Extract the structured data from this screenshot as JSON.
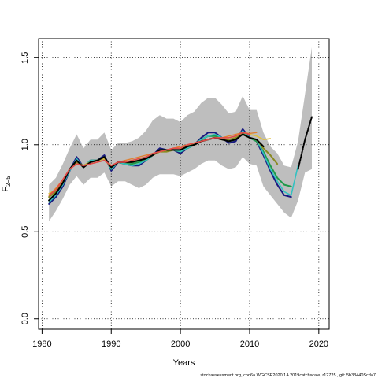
{
  "chart_data": {
    "type": "line",
    "xlabel": "Years",
    "ylabel": "F",
    "ylabel_sub": "2−5",
    "xlim": [
      1979.5,
      2021.5
    ],
    "ylim": [
      -0.06,
      1.61
    ],
    "x_ticks": [
      1980,
      1990,
      2000,
      2010,
      2020
    ],
    "y_ticks": [
      0.0,
      0.5,
      1.0,
      1.5
    ],
    "y_tick_labels": [
      "0.0",
      "0.5",
      "1.0",
      "1.5"
    ],
    "grid": true,
    "grid_style": "dotted",
    "band": {
      "color": "#bebebe",
      "x": [
        1981,
        1982,
        1983,
        1984,
        1985,
        1986,
        1987,
        1988,
        1989,
        1990,
        1991,
        1992,
        1993,
        1994,
        1995,
        1996,
        1997,
        1998,
        1999,
        2000,
        2001,
        2002,
        2003,
        2004,
        2005,
        2006,
        2007,
        2008,
        2009,
        2010,
        2011,
        2012,
        2013,
        2014,
        2015,
        2016,
        2017,
        2018,
        2019
      ],
      "upper": [
        0.77,
        0.81,
        0.89,
        0.98,
        1.06,
        0.98,
        1.03,
        1.03,
        1.07,
        0.97,
        1.01,
        1.01,
        1.02,
        1.04,
        1.08,
        1.14,
        1.17,
        1.15,
        1.15,
        1.13,
        1.17,
        1.19,
        1.24,
        1.27,
        1.27,
        1.23,
        1.18,
        1.19,
        1.28,
        1.2,
        1.2,
        1.07,
        0.99,
        0.95,
        0.88,
        0.87,
        1.02,
        1.29,
        1.56
      ],
      "lower": [
        0.56,
        0.62,
        0.69,
        0.77,
        0.82,
        0.77,
        0.81,
        0.81,
        0.84,
        0.76,
        0.79,
        0.79,
        0.77,
        0.75,
        0.77,
        0.81,
        0.83,
        0.83,
        0.83,
        0.82,
        0.84,
        0.86,
        0.89,
        0.91,
        0.91,
        0.88,
        0.86,
        0.87,
        0.93,
        0.89,
        0.88,
        0.76,
        0.71,
        0.66,
        0.61,
        0.58,
        0.68,
        0.84,
        0.86
      ]
    },
    "series": [
      {
        "color": "#1a1a80",
        "width": 2,
        "x": [
          1981,
          1982,
          1983,
          1984,
          1985,
          1986,
          1987,
          1988,
          1989,
          1990,
          1991,
          1992,
          1993,
          1994,
          1995,
          1996,
          1997,
          1998,
          1999,
          2000,
          2001,
          2002,
          2003,
          2004,
          2005,
          2006,
          2007,
          2008,
          2009,
          2010,
          2011,
          2012,
          2013,
          2014,
          2015,
          2016
        ],
        "values": [
          0.66,
          0.7,
          0.76,
          0.85,
          0.93,
          0.87,
          0.91,
          0.91,
          0.94,
          0.85,
          0.9,
          0.89,
          0.88,
          0.88,
          0.91,
          0.94,
          0.98,
          0.97,
          0.97,
          0.95,
          0.98,
          1.0,
          1.04,
          1.07,
          1.07,
          1.04,
          1.01,
          1.02,
          1.09,
          1.04,
          1.02,
          0.94,
          0.85,
          0.77,
          0.71,
          0.7
        ]
      },
      {
        "color": "#1f9a4a",
        "width": 2,
        "x": [
          1981,
          1982,
          1983,
          1984,
          1985,
          1986,
          1987,
          1988,
          1989,
          1990,
          1991,
          1992,
          1993,
          1994,
          1995,
          1996,
          1997,
          1998,
          1999,
          2000,
          2001,
          2002,
          2003,
          2004,
          2005,
          2006,
          2007,
          2008,
          2009,
          2010,
          2011,
          2012,
          2013,
          2014,
          2015,
          2016
        ],
        "values": [
          0.68,
          0.72,
          0.78,
          0.86,
          0.91,
          0.87,
          0.91,
          0.91,
          0.93,
          0.86,
          0.9,
          0.89,
          0.89,
          0.9,
          0.91,
          0.94,
          0.97,
          0.97,
          0.97,
          0.96,
          0.98,
          1.0,
          1.03,
          1.05,
          1.05,
          1.04,
          1.02,
          1.03,
          1.07,
          1.04,
          1.02,
          0.96,
          0.88,
          0.81,
          0.77,
          0.76
        ]
      },
      {
        "color": "#33c1c1",
        "width": 1.6,
        "x": [
          1981,
          1982,
          1983,
          1984,
          1985,
          1986,
          1987,
          1988,
          1989,
          1990,
          1991,
          1992,
          1993,
          1994,
          1995,
          1996,
          1997,
          1998,
          1999,
          2000,
          2001,
          2002,
          2003,
          2004,
          2005,
          2006,
          2007,
          2008,
          2009,
          2010,
          2011,
          2012,
          2013,
          2014,
          2015,
          2016,
          2017
        ],
        "values": [
          0.67,
          0.71,
          0.77,
          0.85,
          0.92,
          0.87,
          0.91,
          0.91,
          0.93,
          0.86,
          0.9,
          0.89,
          0.88,
          0.89,
          0.91,
          0.94,
          0.97,
          0.97,
          0.97,
          0.96,
          0.98,
          1.0,
          1.03,
          1.05,
          1.06,
          1.04,
          1.02,
          1.03,
          1.08,
          1.04,
          1.03,
          0.95,
          0.86,
          0.79,
          0.73,
          0.71,
          0.88
        ]
      },
      {
        "color": "#8a8a20",
        "width": 2,
        "x": [
          1981,
          1982,
          1983,
          1984,
          1985,
          1986,
          1987,
          1988,
          1989,
          1990,
          1991,
          1992,
          1993,
          1994,
          1995,
          1996,
          1997,
          1998,
          1999,
          2000,
          2001,
          2002,
          2003,
          2004,
          2005,
          2006,
          2007,
          2008,
          2009,
          2010,
          2011,
          2012,
          2013,
          2014
        ],
        "values": [
          0.7,
          0.73,
          0.79,
          0.86,
          0.9,
          0.88,
          0.9,
          0.91,
          0.92,
          0.87,
          0.9,
          0.9,
          0.9,
          0.91,
          0.92,
          0.94,
          0.96,
          0.96,
          0.97,
          0.97,
          0.99,
          1.0,
          1.02,
          1.03,
          1.04,
          1.03,
          1.03,
          1.04,
          1.06,
          1.04,
          1.03,
          0.98,
          0.94,
          0.89
        ]
      },
      {
        "color": "#e0c040",
        "width": 1.6,
        "x": [
          1981,
          1982,
          1983,
          1984,
          1985,
          1986,
          1987,
          1988,
          1989,
          1990,
          1991,
          1992,
          1993,
          1994,
          1995,
          1996,
          1997,
          1998,
          1999,
          2000,
          2001,
          2002,
          2003,
          2004,
          2005,
          2006,
          2007,
          2008,
          2009,
          2010,
          2011,
          2012,
          2013
        ],
        "values": [
          0.72,
          0.74,
          0.8,
          0.86,
          0.89,
          0.88,
          0.9,
          0.91,
          0.92,
          0.88,
          0.9,
          0.9,
          0.91,
          0.92,
          0.93,
          0.95,
          0.96,
          0.97,
          0.98,
          0.98,
          0.99,
          1.01,
          1.02,
          1.03,
          1.04,
          1.04,
          1.04,
          1.05,
          1.07,
          1.06,
          1.05,
          1.03,
          1.035
        ]
      },
      {
        "color": "#e08030",
        "width": 1.4,
        "x": [
          1981,
          1982,
          1983,
          1984,
          1985,
          1986,
          1987,
          1988,
          1989,
          1990,
          1991,
          1992,
          1993,
          1994,
          1995,
          1996,
          1997,
          1998,
          1999,
          2000,
          2001,
          2002,
          2003,
          2004,
          2005,
          2006,
          2007,
          2008,
          2009,
          2010,
          2011
        ],
        "values": [
          0.71,
          0.75,
          0.8,
          0.86,
          0.89,
          0.88,
          0.89,
          0.9,
          0.91,
          0.88,
          0.9,
          0.91,
          0.92,
          0.93,
          0.94,
          0.95,
          0.96,
          0.97,
          0.98,
          0.99,
          1.0,
          1.01,
          1.02,
          1.03,
          1.04,
          1.04,
          1.05,
          1.06,
          1.07,
          1.065,
          1.07
        ]
      },
      {
        "color": "#000000",
        "width": 2,
        "x": [
          1981,
          1982,
          1983,
          1984,
          1985,
          1986,
          1987,
          1988,
          1989,
          1990,
          1991,
          1992,
          1993,
          1994,
          1995,
          1996,
          1997,
          1998,
          1999,
          2000,
          2001,
          2002,
          2003,
          2004,
          2005,
          2006,
          2007,
          2008,
          2009,
          2010,
          2011,
          2012
        ],
        "values": [
          0.68,
          0.72,
          0.78,
          0.86,
          0.91,
          0.87,
          0.9,
          0.91,
          0.93,
          0.87,
          0.9,
          0.9,
          0.9,
          0.91,
          0.92,
          0.94,
          0.97,
          0.97,
          0.97,
          0.97,
          0.99,
          1.0,
          1.02,
          1.03,
          1.04,
          1.03,
          1.02,
          1.03,
          1.06,
          1.04,
          1.03,
          0.99
        ]
      },
      {
        "color": "#e24a4a",
        "width": 1.6,
        "x": [
          1981,
          1982,
          1983,
          1984,
          1985,
          1986,
          1987,
          1988,
          1989,
          1990,
          1991,
          1992,
          1993,
          1994,
          1995,
          1996,
          1997,
          1998,
          1999,
          2000,
          2001,
          2002,
          2003,
          2004,
          2005,
          2006,
          2007,
          2008,
          2009,
          2010
        ],
        "values": [
          0.71,
          0.74,
          0.8,
          0.86,
          0.89,
          0.88,
          0.89,
          0.9,
          0.91,
          0.88,
          0.9,
          0.9,
          0.91,
          0.92,
          0.93,
          0.95,
          0.96,
          0.97,
          0.98,
          0.98,
          1.0,
          1.01,
          1.02,
          1.03,
          1.04,
          1.04,
          1.04,
          1.05,
          1.07,
          1.06
        ]
      },
      {
        "color": "#000000",
        "width": 2,
        "dashed": true,
        "x": [
          2017,
          2018,
          2019
        ],
        "values": [
          0.86,
          1.03,
          1.16
        ]
      }
    ]
  },
  "footnote": "stockassessment.org,  cod6a  WGCSE2020  1A  2019catchscale,  r12725 ,  git:  5b33440Scda7"
}
